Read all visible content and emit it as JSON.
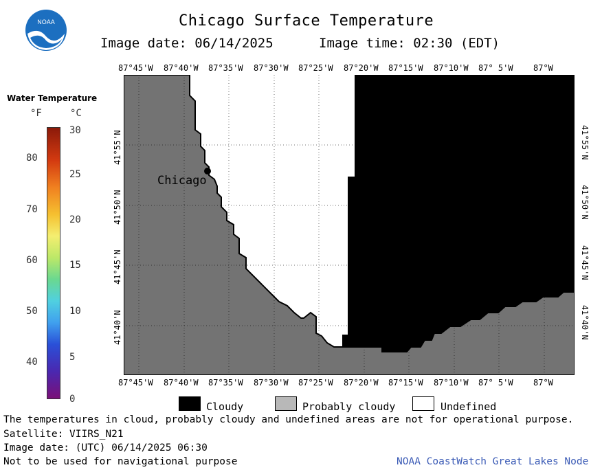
{
  "header": {
    "title": "Chicago Surface Temperature",
    "image_date": "Image date: 06/14/2025",
    "image_time": "Image time: 02:30 (EDT)"
  },
  "logo": {
    "text": "NOAA",
    "color": "#1c6fc0"
  },
  "legend": {
    "title": "Water Temperature",
    "unit_f": "°F",
    "unit_c": "°C",
    "f_ticks": [
      "80",
      "70",
      "60",
      "50",
      "40"
    ],
    "c_ticks": [
      "30",
      "25",
      "20",
      "15",
      "10",
      "5",
      "0"
    ]
  },
  "map": {
    "city_label": "Chicago",
    "lon_labels": [
      "87°45'W",
      "87°40'W",
      "87°35'W",
      "87°30'W",
      "87°25'W",
      "87°20'W",
      "87°15'W",
      "87°10'W",
      "87° 5'W",
      "87°W"
    ],
    "lat_labels": [
      "41°55'N",
      "41°50'N",
      "41°45'N",
      "41°40'N"
    ],
    "colors": {
      "land": "#737373",
      "cloudy": "#000000",
      "undefined": "#ffffff"
    }
  },
  "key": {
    "cloudy": "Cloudy",
    "probably_cloudy": "Probably cloudy",
    "undefined": "Undefined"
  },
  "footer": {
    "note": "The temperatures in cloud, probably cloudy and undefined areas are not for operational purpose.",
    "satellite": "Satellite: VIIRS_N21",
    "utc_date": "Image date: (UTC) 06/14/2025  06:30",
    "nav_warning": "Not to be used for navigational purpose",
    "credit": "NOAA CoastWatch Great Lakes Node"
  }
}
